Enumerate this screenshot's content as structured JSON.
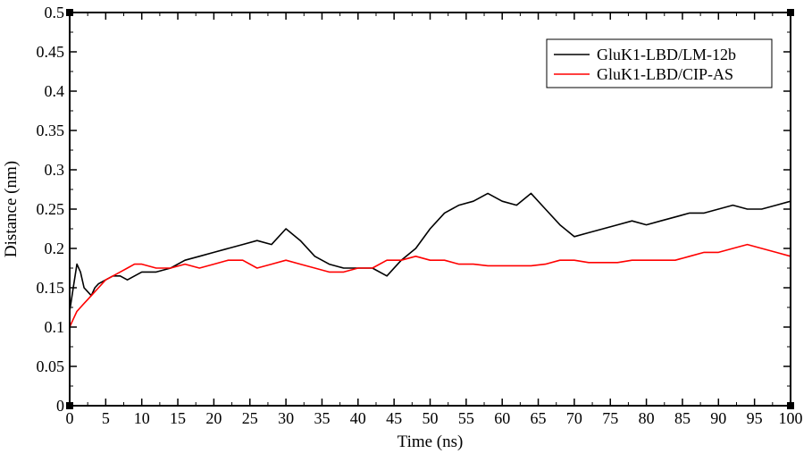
{
  "chart_data": {
    "type": "line",
    "title": "",
    "xlabel": "Time (ns)",
    "ylabel": "Distance (nm)",
    "xlim": [
      0,
      100
    ],
    "ylim": [
      0,
      0.5
    ],
    "x_ticks": [
      0,
      5,
      10,
      15,
      20,
      25,
      30,
      35,
      40,
      45,
      50,
      55,
      60,
      65,
      70,
      75,
      80,
      85,
      90,
      95,
      100
    ],
    "y_ticks": [
      0,
      0.05,
      0.1,
      0.15,
      0.2,
      0.25,
      0.3,
      0.35,
      0.4,
      0.45,
      0.5
    ],
    "grid": false,
    "legend_position": "top-right",
    "x": [
      0,
      0.5,
      1,
      1.5,
      2,
      2.5,
      3,
      3.5,
      4,
      5,
      6,
      7,
      8,
      9,
      10,
      12,
      14,
      16,
      18,
      20,
      22,
      24,
      26,
      28,
      30,
      32,
      34,
      36,
      38,
      40,
      42,
      44,
      46,
      48,
      50,
      52,
      54,
      56,
      58,
      60,
      62,
      64,
      66,
      68,
      70,
      72,
      74,
      76,
      78,
      80,
      82,
      84,
      86,
      88,
      90,
      92,
      94,
      96,
      98,
      100
    ],
    "series": [
      {
        "name": "GluK1-LBD/LM-12b",
        "color": "#000000",
        "values": [
          0.12,
          0.15,
          0.18,
          0.17,
          0.15,
          0.145,
          0.14,
          0.15,
          0.155,
          0.16,
          0.165,
          0.165,
          0.16,
          0.165,
          0.17,
          0.17,
          0.175,
          0.185,
          0.19,
          0.195,
          0.2,
          0.205,
          0.21,
          0.205,
          0.225,
          0.21,
          0.19,
          0.18,
          0.175,
          0.175,
          0.175,
          0.165,
          0.185,
          0.2,
          0.225,
          0.245,
          0.255,
          0.26,
          0.27,
          0.26,
          0.255,
          0.27,
          0.25,
          0.23,
          0.215,
          0.22,
          0.225,
          0.23,
          0.235,
          0.23,
          0.235,
          0.24,
          0.245,
          0.245,
          0.25,
          0.255,
          0.25,
          0.25,
          0.255,
          0.26
        ]
      },
      {
        "name": "GluK1-LBD/CIP-AS",
        "color": "#ff0000",
        "values": [
          0.1,
          0.11,
          0.12,
          0.125,
          0.13,
          0.135,
          0.14,
          0.145,
          0.15,
          0.16,
          0.165,
          0.17,
          0.175,
          0.18,
          0.18,
          0.175,
          0.175,
          0.18,
          0.175,
          0.18,
          0.185,
          0.185,
          0.175,
          0.18,
          0.185,
          0.18,
          0.175,
          0.17,
          0.17,
          0.175,
          0.175,
          0.185,
          0.185,
          0.19,
          0.185,
          0.185,
          0.18,
          0.18,
          0.178,
          0.178,
          0.178,
          0.178,
          0.18,
          0.185,
          0.185,
          0.182,
          0.182,
          0.182,
          0.185,
          0.185,
          0.185,
          0.185,
          0.19,
          0.195,
          0.195,
          0.2,
          0.205,
          0.2,
          0.195,
          0.19
        ]
      }
    ]
  }
}
